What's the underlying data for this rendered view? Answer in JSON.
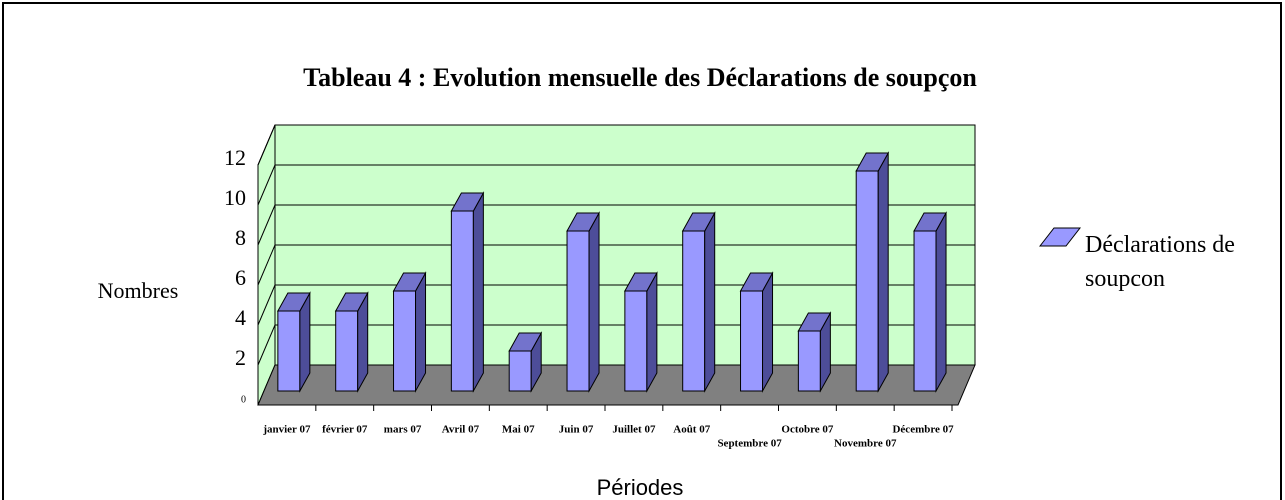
{
  "chart_data": {
    "type": "bar3d",
    "title": "Tableau 4 : Evolution mensuelle des Déclarations de soupçon",
    "y_label": "Nombres",
    "x_label": "Périodes",
    "categories": [
      "janvier 07",
      "février 07",
      "mars 07",
      "Avril 07",
      "Mai 07",
      "Juin 07",
      "Juillet 07",
      "Août 07",
      "Septembre 07",
      "Octobre 07",
      "Novembre 07",
      "Décembre 07"
    ],
    "series": [
      {
        "name": "Déclarations de soupcon",
        "color": "#9999ff",
        "values": [
          4,
          4,
          5,
          9,
          2,
          8,
          5,
          8,
          5,
          3,
          11,
          8
        ]
      }
    ],
    "ylim": [
      0,
      12
    ],
    "yticks": [
      0,
      2,
      4,
      6,
      8,
      10,
      12
    ],
    "grid": true
  }
}
